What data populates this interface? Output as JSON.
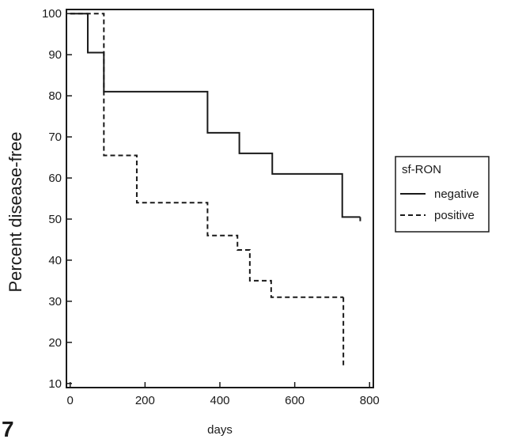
{
  "panel_label": "7",
  "chart_data": {
    "type": "line",
    "title": "",
    "xlabel": "days",
    "ylabel": "Percent disease-free",
    "xlim": [
      -10,
      810
    ],
    "ylim": [
      9,
      101
    ],
    "xticks": [
      0,
      200,
      400,
      600,
      800
    ],
    "yticks": [
      10,
      20,
      30,
      40,
      50,
      60,
      70,
      80,
      90,
      100
    ],
    "grid": false,
    "legend": {
      "title": "sf-RON",
      "placement": "right"
    },
    "series": [
      {
        "name": "negative",
        "style": "solid",
        "color": "#1a1a1a",
        "steps": [
          [
            0,
            100
          ],
          [
            47,
            90.5
          ],
          [
            90,
            81
          ],
          [
            367,
            71
          ],
          [
            452,
            66
          ],
          [
            540,
            61
          ],
          [
            727,
            50.5
          ],
          [
            775,
            50.5
          ]
        ],
        "end_drop": 49.5
      },
      {
        "name": "positive",
        "style": "dashed",
        "color": "#1a1a1a",
        "steps": [
          [
            0,
            100
          ],
          [
            90,
            65.5
          ],
          [
            178,
            54
          ],
          [
            367,
            46
          ],
          [
            447,
            42.5
          ],
          [
            480,
            35
          ],
          [
            537,
            31
          ],
          [
            730,
            31
          ]
        ],
        "end_drop": 14
      }
    ]
  }
}
